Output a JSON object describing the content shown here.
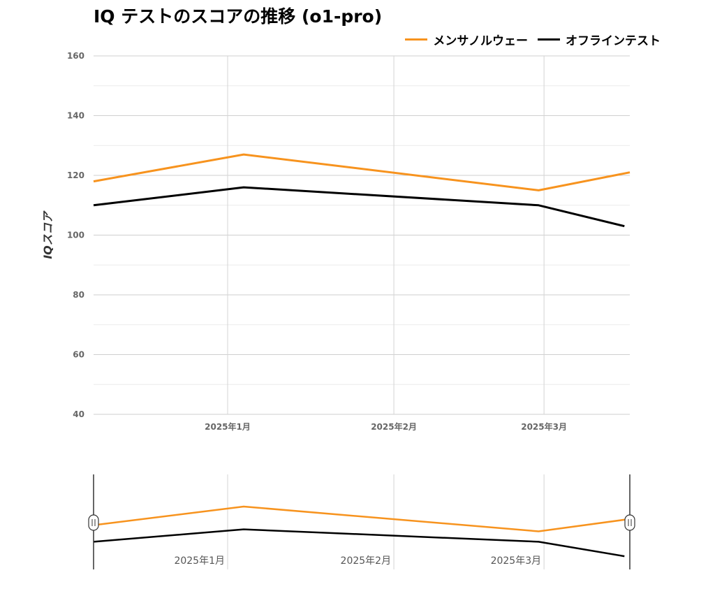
{
  "chart_data": {
    "type": "line",
    "title": "IQ テストのスコアの推移 (o1-pro)",
    "xlabel": "",
    "ylabel": "IQスコア",
    "ylim": [
      40,
      160
    ],
    "yticks": [
      "40",
      "60",
      "80",
      "100",
      "120",
      "140",
      "160"
    ],
    "xticks": [
      {
        "date": "2025-01-01",
        "label": "2025年1月"
      },
      {
        "date": "2025-02-01",
        "label": "2025年2月"
      },
      {
        "date": "2025-03-01",
        "label": "2025年3月"
      }
    ],
    "xlim": [
      "2024-12-07",
      "2025-03-17"
    ],
    "grid": true,
    "legend": "top-right",
    "series": [
      {
        "name": "メンサノルウェー",
        "color": "#f7931e",
        "points": [
          {
            "x": "2024-12-07",
            "y": 118
          },
          {
            "x": "2025-01-04",
            "y": 127
          },
          {
            "x": "2025-02-28",
            "y": 115
          },
          {
            "x": "2025-03-17",
            "y": 121
          }
        ]
      },
      {
        "name": "オフラインテスト",
        "color": "#000000",
        "points": [
          {
            "x": "2024-12-07",
            "y": 110
          },
          {
            "x": "2025-01-04",
            "y": 116
          },
          {
            "x": "2025-02-28",
            "y": 110
          },
          {
            "x": "2025-03-16",
            "y": 103
          }
        ]
      }
    ]
  }
}
